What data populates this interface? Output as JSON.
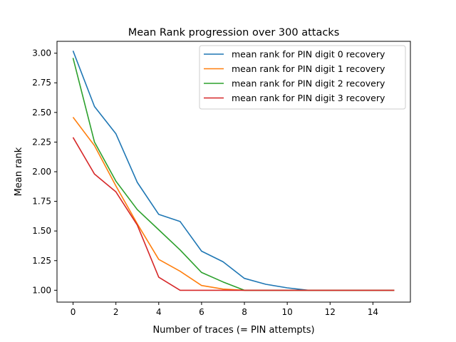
{
  "chart_data": {
    "type": "line",
    "title": "Mean Rank progression over 300 attacks",
    "xlabel": "Number of traces (= PIN attempts)",
    "ylabel": "Mean rank",
    "xlim": [
      -0.75,
      15.75
    ],
    "ylim": [
      0.9,
      3.1
    ],
    "xticks": [
      0,
      2,
      4,
      6,
      8,
      10,
      12,
      14
    ],
    "xtick_labels": [
      "0",
      "2",
      "4",
      "6",
      "8",
      "10",
      "12",
      "14"
    ],
    "yticks": [
      1.0,
      1.25,
      1.5,
      1.75,
      2.0,
      2.25,
      2.5,
      2.75,
      3.0
    ],
    "ytick_labels": [
      "1.00",
      "1.25",
      "1.50",
      "1.75",
      "2.00",
      "2.25",
      "2.50",
      "2.75",
      "3.00"
    ],
    "grid": false,
    "legend_position": "top-right",
    "x": [
      0,
      1,
      2,
      3,
      4,
      5,
      6,
      7,
      8,
      9,
      10,
      11,
      12,
      13,
      14,
      15
    ],
    "series": [
      {
        "name": "mean rank for PIN digit 0 recovery",
        "color": "#1f77b4",
        "values": [
          3.02,
          2.55,
          2.32,
          1.91,
          1.64,
          1.58,
          1.33,
          1.24,
          1.1,
          1.05,
          1.02,
          1.0,
          1.0,
          1.0,
          1.0,
          1.0
        ]
      },
      {
        "name": "mean rank for PIN digit 1 recovery",
        "color": "#ff7f0e",
        "values": [
          2.46,
          2.22,
          1.88,
          1.56,
          1.26,
          1.16,
          1.04,
          1.01,
          1.0,
          1.0,
          1.0,
          1.0,
          1.0,
          1.0,
          1.0,
          1.0
        ]
      },
      {
        "name": "mean rank for PIN digit 2 recovery",
        "color": "#2ca02c",
        "values": [
          2.96,
          2.25,
          1.92,
          1.68,
          1.51,
          1.34,
          1.15,
          1.07,
          1.0,
          1.0,
          1.0,
          1.0,
          1.0,
          1.0,
          1.0,
          1.0
        ]
      },
      {
        "name": "mean rank for PIN digit 3 recovery",
        "color": "#d62728",
        "values": [
          2.29,
          1.98,
          1.83,
          1.55,
          1.11,
          1.0,
          1.0,
          1.0,
          1.0,
          1.0,
          1.0,
          1.0,
          1.0,
          1.0,
          1.0,
          1.0
        ]
      }
    ]
  }
}
